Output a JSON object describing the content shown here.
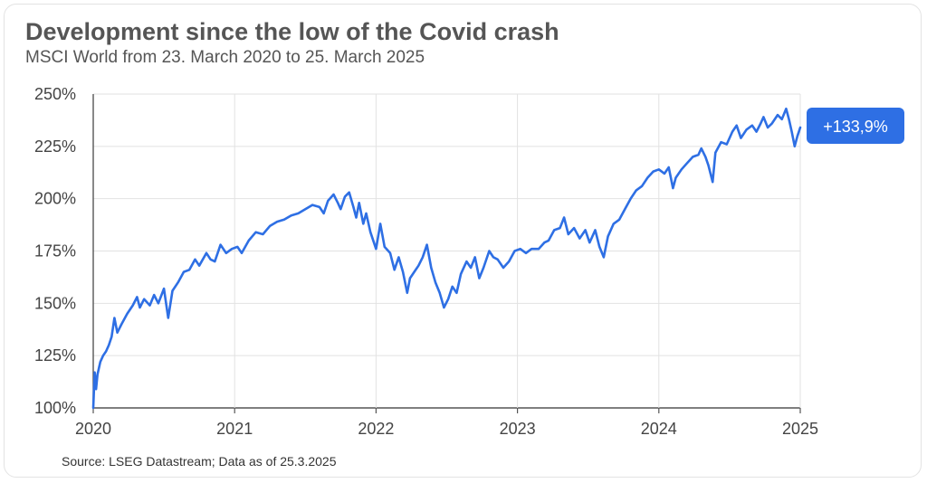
{
  "chart_data": {
    "type": "line",
    "title": "Development since the low of the Covid crash",
    "subtitle": "MSCI World from 23. March 2020 to 25. March 2025",
    "xlabel": "",
    "ylabel": "",
    "x_ticks": [
      "2020",
      "2021",
      "2022",
      "2023",
      "2024",
      "2025"
    ],
    "x_range": [
      2020.0,
      2025.0
    ],
    "y_ticks": [
      "100%",
      "125%",
      "150%",
      "175%",
      "200%",
      "225%",
      "250%"
    ],
    "ylim": [
      100,
      250
    ],
    "grid": true,
    "annotation": "+133,9%",
    "series": [
      {
        "name": "MSCI World",
        "color": "#2e6fe4",
        "points": [
          [
            2020.0,
            100.0
          ],
          [
            2020.01,
            117.0
          ],
          [
            2020.02,
            109.0
          ],
          [
            2020.03,
            116.0
          ],
          [
            2020.05,
            122.0
          ],
          [
            2020.07,
            125.0
          ],
          [
            2020.09,
            127.0
          ],
          [
            2020.11,
            130.0
          ],
          [
            2020.13,
            134.0
          ],
          [
            2020.15,
            143.0
          ],
          [
            2020.17,
            136.0
          ],
          [
            2020.2,
            140.0
          ],
          [
            2020.24,
            145.0
          ],
          [
            2020.28,
            149.0
          ],
          [
            2020.31,
            153.0
          ],
          [
            2020.33,
            148.0
          ],
          [
            2020.36,
            152.0
          ],
          [
            2020.4,
            149.0
          ],
          [
            2020.43,
            154.0
          ],
          [
            2020.46,
            150.0
          ],
          [
            2020.5,
            157.0
          ],
          [
            2020.53,
            143.0
          ],
          [
            2020.56,
            156.0
          ],
          [
            2020.6,
            160.0
          ],
          [
            2020.64,
            165.0
          ],
          [
            2020.68,
            166.0
          ],
          [
            2020.72,
            171.0
          ],
          [
            2020.75,
            168.0
          ],
          [
            2020.8,
            174.0
          ],
          [
            2020.83,
            171.0
          ],
          [
            2020.86,
            170.0
          ],
          [
            2020.9,
            178.0
          ],
          [
            2020.94,
            174.0
          ],
          [
            2020.98,
            176.0
          ],
          [
            2021.02,
            177.0
          ],
          [
            2021.05,
            174.0
          ],
          [
            2021.1,
            180.0
          ],
          [
            2021.15,
            184.0
          ],
          [
            2021.2,
            183.0
          ],
          [
            2021.25,
            187.0
          ],
          [
            2021.3,
            189.0
          ],
          [
            2021.35,
            190.0
          ],
          [
            2021.4,
            192.0
          ],
          [
            2021.45,
            193.0
          ],
          [
            2021.5,
            195.0
          ],
          [
            2021.55,
            197.0
          ],
          [
            2021.6,
            196.0
          ],
          [
            2021.63,
            193.0
          ],
          [
            2021.66,
            199.0
          ],
          [
            2021.7,
            202.0
          ],
          [
            2021.73,
            198.0
          ],
          [
            2021.75,
            195.0
          ],
          [
            2021.78,
            201.0
          ],
          [
            2021.81,
            203.0
          ],
          [
            2021.84,
            196.0
          ],
          [
            2021.86,
            191.0
          ],
          [
            2021.88,
            198.0
          ],
          [
            2021.91,
            188.0
          ],
          [
            2021.93,
            193.0
          ],
          [
            2021.96,
            184.0
          ],
          [
            2022.0,
            176.0
          ],
          [
            2022.03,
            188.0
          ],
          [
            2022.06,
            177.0
          ],
          [
            2022.1,
            174.0
          ],
          [
            2022.13,
            166.0
          ],
          [
            2022.16,
            172.0
          ],
          [
            2022.19,
            165.0
          ],
          [
            2022.22,
            155.0
          ],
          [
            2022.24,
            162.0
          ],
          [
            2022.27,
            165.0
          ],
          [
            2022.3,
            168.0
          ],
          [
            2022.33,
            172.0
          ],
          [
            2022.36,
            178.0
          ],
          [
            2022.39,
            167.0
          ],
          [
            2022.42,
            160.0
          ],
          [
            2022.45,
            155.0
          ],
          [
            2022.48,
            148.0
          ],
          [
            2022.51,
            152.0
          ],
          [
            2022.54,
            158.0
          ],
          [
            2022.57,
            155.0
          ],
          [
            2022.6,
            164.0
          ],
          [
            2022.64,
            170.0
          ],
          [
            2022.67,
            167.0
          ],
          [
            2022.7,
            172.0
          ],
          [
            2022.73,
            162.0
          ],
          [
            2022.76,
            167.0
          ],
          [
            2022.8,
            175.0
          ],
          [
            2022.83,
            172.0
          ],
          [
            2022.86,
            171.0
          ],
          [
            2022.9,
            167.0
          ],
          [
            2022.94,
            170.0
          ],
          [
            2022.98,
            175.0
          ],
          [
            2023.02,
            176.0
          ],
          [
            2023.06,
            174.0
          ],
          [
            2023.1,
            176.0
          ],
          [
            2023.15,
            176.0
          ],
          [
            2023.19,
            179.0
          ],
          [
            2023.22,
            180.0
          ],
          [
            2023.26,
            185.0
          ],
          [
            2023.3,
            186.0
          ],
          [
            2023.33,
            191.0
          ],
          [
            2023.36,
            183.0
          ],
          [
            2023.4,
            186.0
          ],
          [
            2023.44,
            181.0
          ],
          [
            2023.48,
            185.0
          ],
          [
            2023.51,
            179.0
          ],
          [
            2023.55,
            185.0
          ],
          [
            2023.58,
            177.0
          ],
          [
            2023.61,
            172.0
          ],
          [
            2023.64,
            182.0
          ],
          [
            2023.68,
            188.0
          ],
          [
            2023.72,
            190.0
          ],
          [
            2023.76,
            195.0
          ],
          [
            2023.8,
            200.0
          ],
          [
            2023.84,
            204.0
          ],
          [
            2023.88,
            206.0
          ],
          [
            2023.92,
            210.0
          ],
          [
            2023.96,
            213.0
          ],
          [
            2024.0,
            214.0
          ],
          [
            2024.04,
            212.0
          ],
          [
            2024.07,
            215.0
          ],
          [
            2024.1,
            205.0
          ],
          [
            2024.12,
            210.0
          ],
          [
            2024.16,
            214.0
          ],
          [
            2024.2,
            217.0
          ],
          [
            2024.24,
            220.0
          ],
          [
            2024.28,
            221.0
          ],
          [
            2024.3,
            224.0
          ],
          [
            2024.33,
            220.0
          ],
          [
            2024.35,
            216.0
          ],
          [
            2024.38,
            208.0
          ],
          [
            2024.4,
            222.0
          ],
          [
            2024.44,
            227.0
          ],
          [
            2024.48,
            226.0
          ],
          [
            2024.52,
            232.0
          ],
          [
            2024.55,
            235.0
          ],
          [
            2024.58,
            229.0
          ],
          [
            2024.62,
            233.0
          ],
          [
            2024.66,
            235.0
          ],
          [
            2024.69,
            232.0
          ],
          [
            2024.72,
            236.0
          ],
          [
            2024.74,
            239.0
          ],
          [
            2024.77,
            234.0
          ],
          [
            2024.8,
            236.0
          ],
          [
            2024.84,
            240.0
          ],
          [
            2024.87,
            238.0
          ],
          [
            2024.9,
            243.0
          ],
          [
            2024.92,
            238.0
          ],
          [
            2024.94,
            232.0
          ],
          [
            2024.96,
            225.0
          ],
          [
            2024.98,
            230.0
          ],
          [
            2025.0,
            234.0
          ]
        ]
      }
    ]
  },
  "footer": {
    "source": "Source: LSEG Datastream; Data as of 25.3.2025"
  }
}
